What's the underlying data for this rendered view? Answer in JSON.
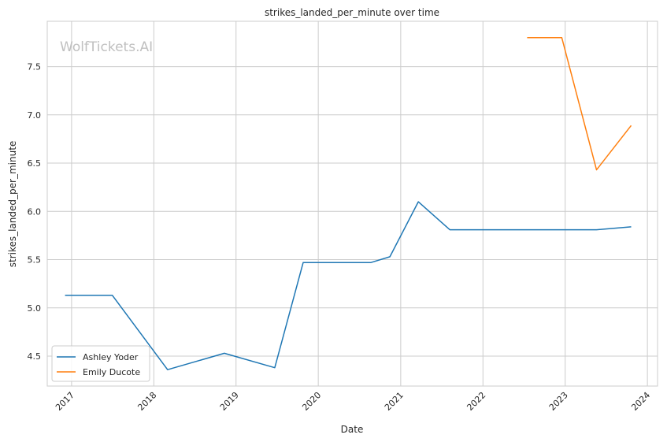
{
  "chart_data": {
    "type": "line",
    "title": "strikes_landed_per_minute over time",
    "xlabel": "Date",
    "ylabel": "strikes_landed_per_minute",
    "watermark": "WolfTickets.AI",
    "x_ticks": [
      "2017",
      "2018",
      "2019",
      "2020",
      "2021",
      "2022",
      "2023",
      "2024"
    ],
    "y_ticks": [
      "4.5",
      "5.0",
      "5.5",
      "6.0",
      "6.5",
      "7.0",
      "7.5"
    ],
    "xlim": [
      "2016-09-15",
      "2024-02-15"
    ],
    "ylim": [
      4.19,
      7.97
    ],
    "grid": true,
    "legend_position": "lower-left",
    "series": [
      {
        "name": "Ashley Yoder",
        "color": "#1f77b4",
        "points": [
          {
            "x": "2016-12-03",
            "y": 5.13
          },
          {
            "x": "2017-07-01",
            "y": 5.13
          },
          {
            "x": "2018-03-03",
            "y": 4.36
          },
          {
            "x": "2018-11-10",
            "y": 4.53
          },
          {
            "x": "2019-06-22",
            "y": 4.38
          },
          {
            "x": "2019-10-26",
            "y": 5.47
          },
          {
            "x": "2020-08-22",
            "y": 5.47
          },
          {
            "x": "2020-11-14",
            "y": 5.53
          },
          {
            "x": "2021-03-20",
            "y": 6.1
          },
          {
            "x": "2021-08-07",
            "y": 5.81
          },
          {
            "x": "2023-05-20",
            "y": 5.81
          },
          {
            "x": "2023-10-21",
            "y": 5.84
          }
        ]
      },
      {
        "name": "Emily Ducote",
        "color": "#ff7f0e",
        "points": [
          {
            "x": "2022-07-16",
            "y": 7.8
          },
          {
            "x": "2022-12-17",
            "y": 7.8
          },
          {
            "x": "2023-05-20",
            "y": 6.43
          },
          {
            "x": "2023-10-21",
            "y": 6.89
          }
        ]
      }
    ]
  }
}
